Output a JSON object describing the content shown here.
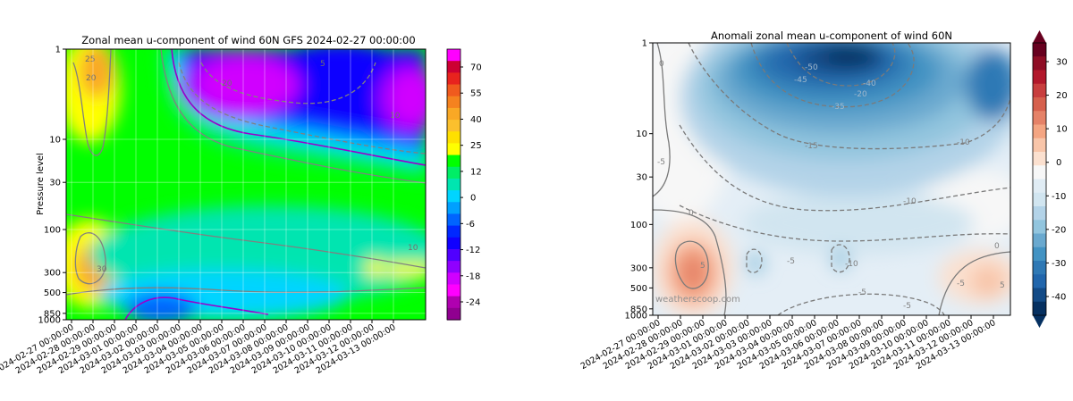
{
  "chart_data": [
    {
      "type": "heatmap",
      "subtype": "filled-contour",
      "title": "Zonal mean u-component of wind 60N GFS 2024-02-27 00:00:00",
      "xlabel": "",
      "ylabel": "Pressure level",
      "y_scale": "log",
      "y_inverted": true,
      "ylim": [
        1000,
        1
      ],
      "y_ticks": [
        "1",
        "10",
        "30",
        "100",
        "300",
        "500",
        "850",
        "1000"
      ],
      "x_ticks": [
        "2024-02-27 00:00:00",
        "2024-02-28 00:00:00",
        "2024-02-29 00:00:00",
        "2024-03-01 00:00:00",
        "2024-03-02 00:00:00",
        "2024-03-03 00:00:00",
        "2024-03-04 00:00:00",
        "2024-03-05 00:00:00",
        "2024-03-06 00:00:00",
        "2024-03-07 00:00:00",
        "2024-03-08 00:00:00",
        "2024-03-09 00:00:00",
        "2024-03-10 00:00:00",
        "2024-03-11 00:00:00",
        "2024-03-12 00:00:00",
        "2024-03-13 00:00:00"
      ],
      "grid": true,
      "colorbar": {
        "ticks": [
          "70",
          "55",
          "40",
          "25",
          "12",
          "0",
          "-6",
          "-12",
          "-18",
          "-24"
        ],
        "colors": [
          "#ff00ff",
          "#cc0033",
          "#e8231e",
          "#f05a1e",
          "#f5821f",
          "#f9a825",
          "#fbc02d",
          "#ffe000",
          "#ffff00",
          "#00ff00",
          "#00ee66",
          "#00e5b0",
          "#00d4ff",
          "#00a0ff",
          "#0064ff",
          "#0028ff",
          "#1000ff",
          "#5000ff",
          "#9000ff",
          "#d000ff",
          "#ff00ff",
          "#b000b0",
          "#900090"
        ]
      },
      "contour_labels": [
        "25",
        "20",
        "20",
        "5",
        "30",
        "10",
        "10"
      ],
      "values_summary": {
        "upper_levels_1_to_10hPa": "strong easterly (negative) winds, minimum about -24 m/s from 2024-03-01 onward",
        "mid_levels_10_to_100hPa": "weak westerly 0 to 12 m/s",
        "lower_levels_200_to_850hPa": "westerly maxima above 25 m/s near 2024-02-27 and around 2024-03-11 to 2024-03-13",
        "near_surface_early_march": "weak easterlies near 1000 hPa around 2024-03-01 to 2024-03-03"
      }
    },
    {
      "type": "heatmap",
      "subtype": "filled-contour",
      "title": "Anomali zonal mean u-component of wind 60N",
      "xlabel": "",
      "ylabel": "",
      "y_scale": "log",
      "y_inverted": true,
      "ylim": [
        1000,
        1
      ],
      "y_ticks": [
        "1",
        "10",
        "30",
        "100",
        "300",
        "500",
        "850",
        "1000"
      ],
      "x_ticks": [
        "2024-02-27 00:00:00",
        "2024-02-28 00:00:00",
        "2024-02-29 00:00:00",
        "2024-03-01 00:00:00",
        "2024-03-02 00:00:00",
        "2024-03-03 00:00:00",
        "2024-03-04 00:00:00",
        "2024-03-05 00:00:00",
        "2024-03-06 00:00:00",
        "2024-03-07 00:00:00",
        "2024-03-08 00:00:00",
        "2024-03-09 00:00:00",
        "2024-03-10 00:00:00",
        "2024-03-11 00:00:00",
        "2024-03-12 00:00:00",
        "2024-03-13 00:00:00"
      ],
      "grid": false,
      "colorbar": {
        "ticks": [
          "30",
          "20",
          "10",
          "0",
          "-10",
          "-20",
          "-30",
          "-40"
        ],
        "colors": [
          "#67001f",
          "#8e0d25",
          "#b2182b",
          "#c83e3e",
          "#d6604d",
          "#e58268",
          "#f4a582",
          "#f8c5a9",
          "#fbe0cf",
          "#f7f7f7",
          "#e0ecf4",
          "#d1e5f0",
          "#b3d3e8",
          "#92c5de",
          "#6aa9cf",
          "#4393c3",
          "#2f79b5",
          "#2166ac",
          "#134b87",
          "#053061"
        ]
      },
      "contour_labels": [
        "0",
        "-50",
        "-45",
        "-40",
        "-35",
        "-10",
        "-5",
        "-15",
        "-20",
        "-10",
        "-5",
        "-10",
        "0",
        "5",
        "-5",
        "-5",
        "-5",
        "5",
        "0"
      ],
      "watermark": "weatherscoop.com",
      "values_summary": {
        "upper_levels_1_to_10hPa": "negative anomaly down to about -50 m/s around 2024-03-03 to 2024-03-07",
        "mid_levels": "negative anomaly -5 to -15 m/s",
        "lower_levels_left": "positive anomaly up to about 10 m/s near 300 hPa on 2024-02-27",
        "lower_levels_right": "positive anomaly about 5 m/s near 300 hPa around 2024-03-11 to 2024-03-13"
      }
    }
  ]
}
